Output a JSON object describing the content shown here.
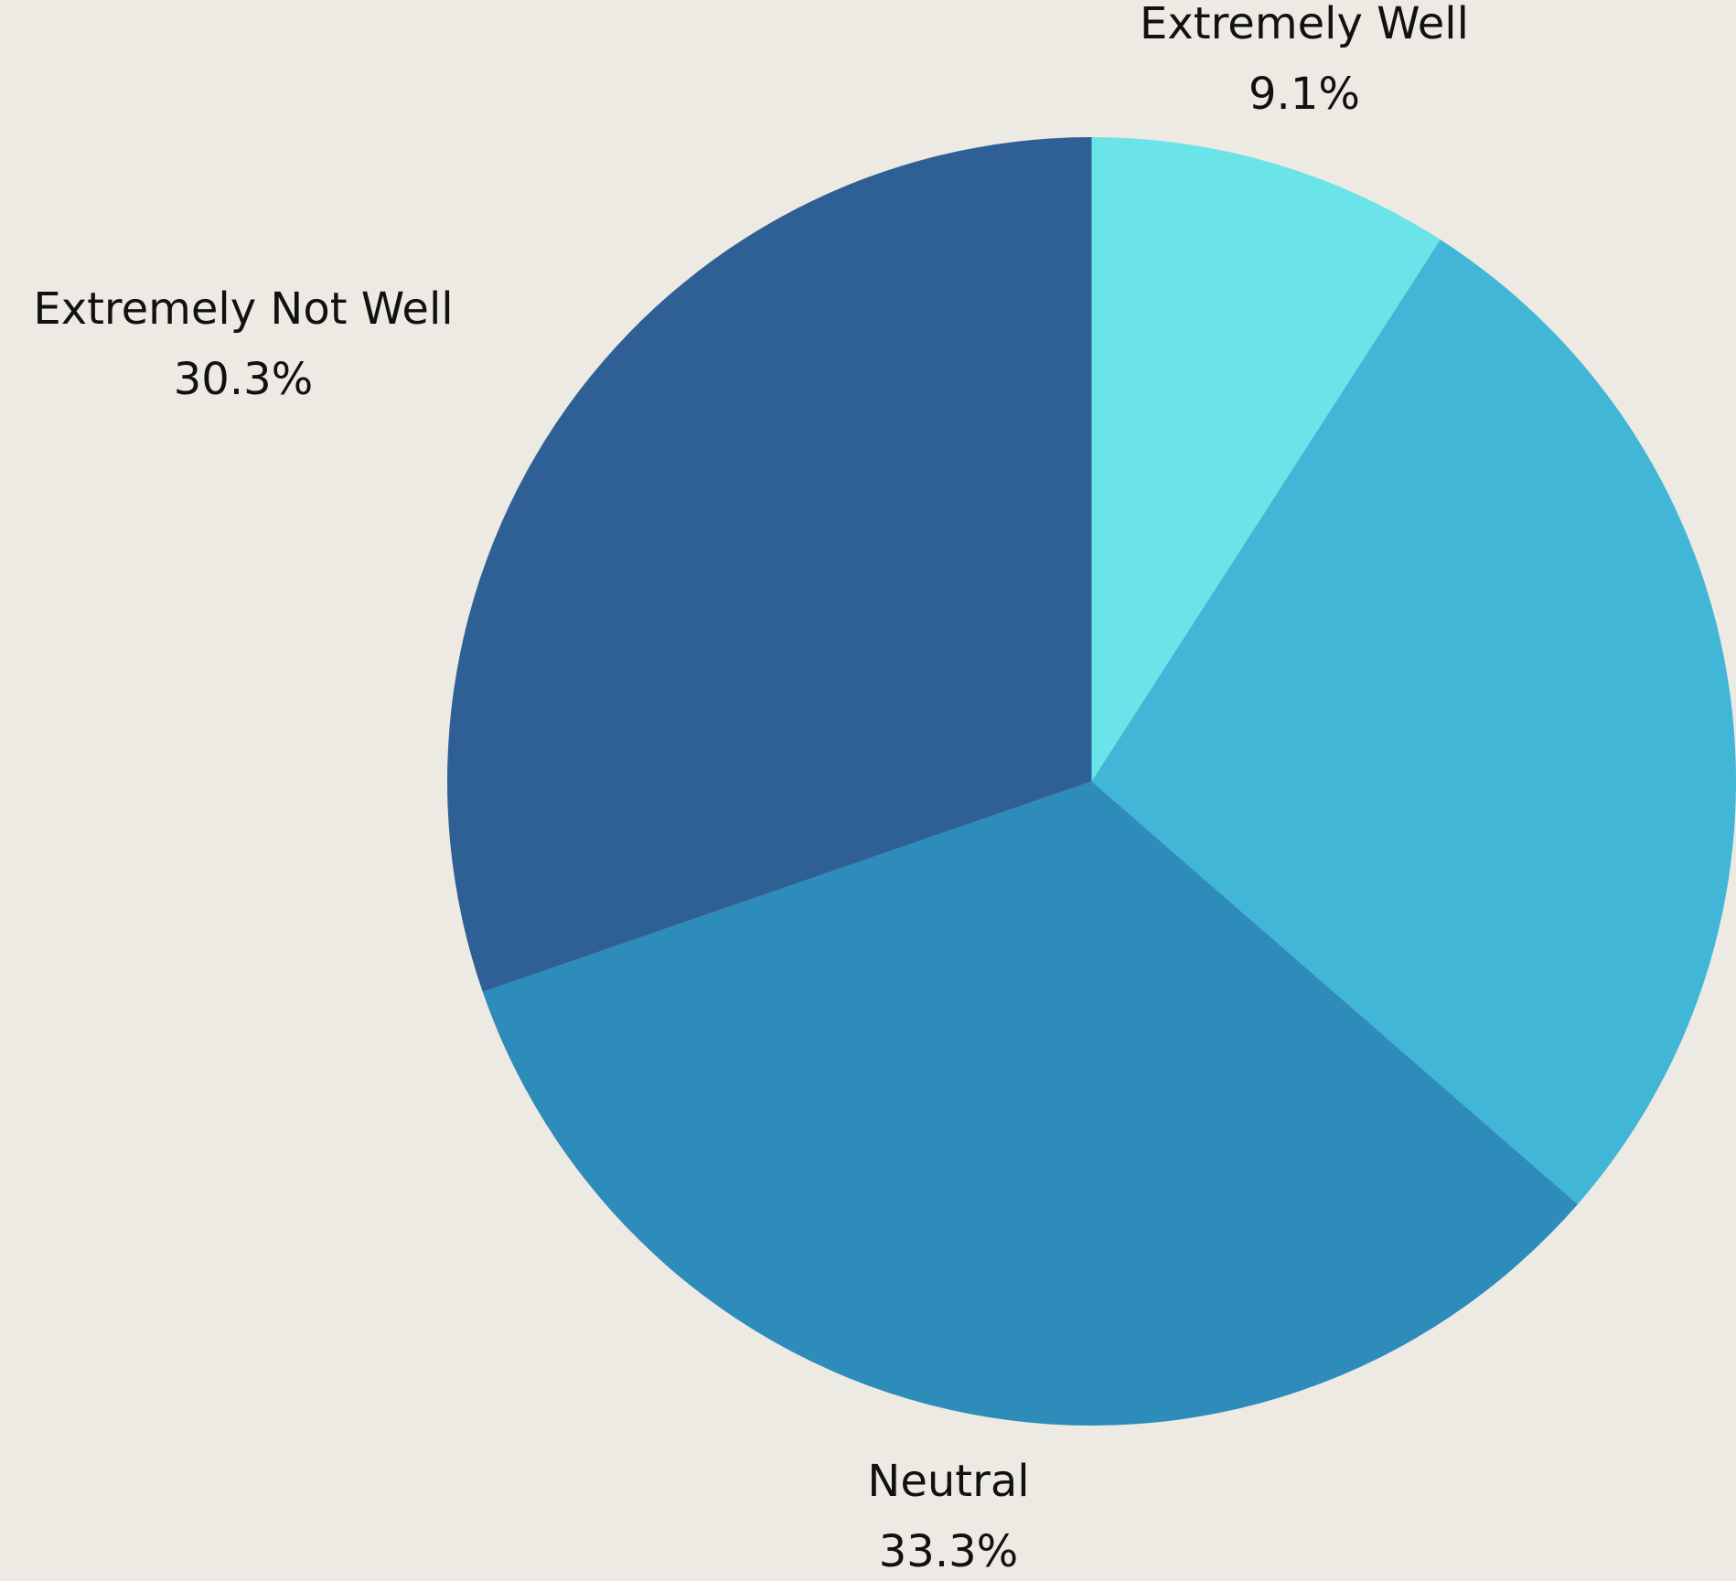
{
  "chart_data": {
    "type": "pie",
    "categories": [
      "Extremely Well",
      null,
      "Neutral",
      "Extremely Not Well"
    ],
    "values": [
      9.1,
      27.3,
      33.3,
      30.3
    ],
    "value_labels": [
      "9.1%",
      null,
      "33.3%",
      "30.3%"
    ],
    "colors": [
      "#6ae4e8",
      "#42b6d6",
      "#2d8cba",
      "#2e6096"
    ]
  }
}
